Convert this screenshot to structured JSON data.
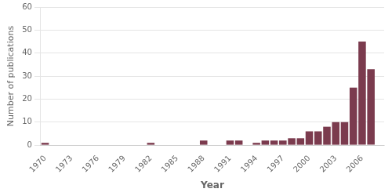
{
  "chart_data": {
    "type": "bar",
    "x": [
      1970,
      1971,
      1972,
      1973,
      1974,
      1975,
      1976,
      1977,
      1978,
      1979,
      1980,
      1981,
      1982,
      1983,
      1984,
      1985,
      1986,
      1987,
      1988,
      1989,
      1990,
      1991,
      1992,
      1993,
      1994,
      1995,
      1996,
      1997,
      1998,
      1999,
      2000,
      2001,
      2002,
      2003,
      2004,
      2005,
      2006,
      2007
    ],
    "values": [
      1,
      0,
      0,
      0,
      0,
      0,
      0,
      0,
      0,
      0,
      0,
      0,
      1,
      0,
      0,
      0,
      0,
      0,
      2,
      0,
      0,
      2,
      2,
      0,
      1,
      2,
      2,
      2,
      3,
      3,
      6,
      6,
      8,
      10,
      10,
      25,
      45,
      33
    ],
    "color": "#7b3b4e",
    "x_label": "Year",
    "y_label": "Number of publications",
    "xlim": [
      1969.5,
      2008.5
    ],
    "xticks": [
      1970,
      1973,
      1976,
      1979,
      1982,
      1985,
      1988,
      1991,
      1994,
      1997,
      2000,
      2003,
      2006
    ],
    "ylim": [
      0,
      60
    ],
    "yticks": [
      0,
      10,
      20,
      30,
      40,
      50,
      60
    ],
    "grid": true
  }
}
